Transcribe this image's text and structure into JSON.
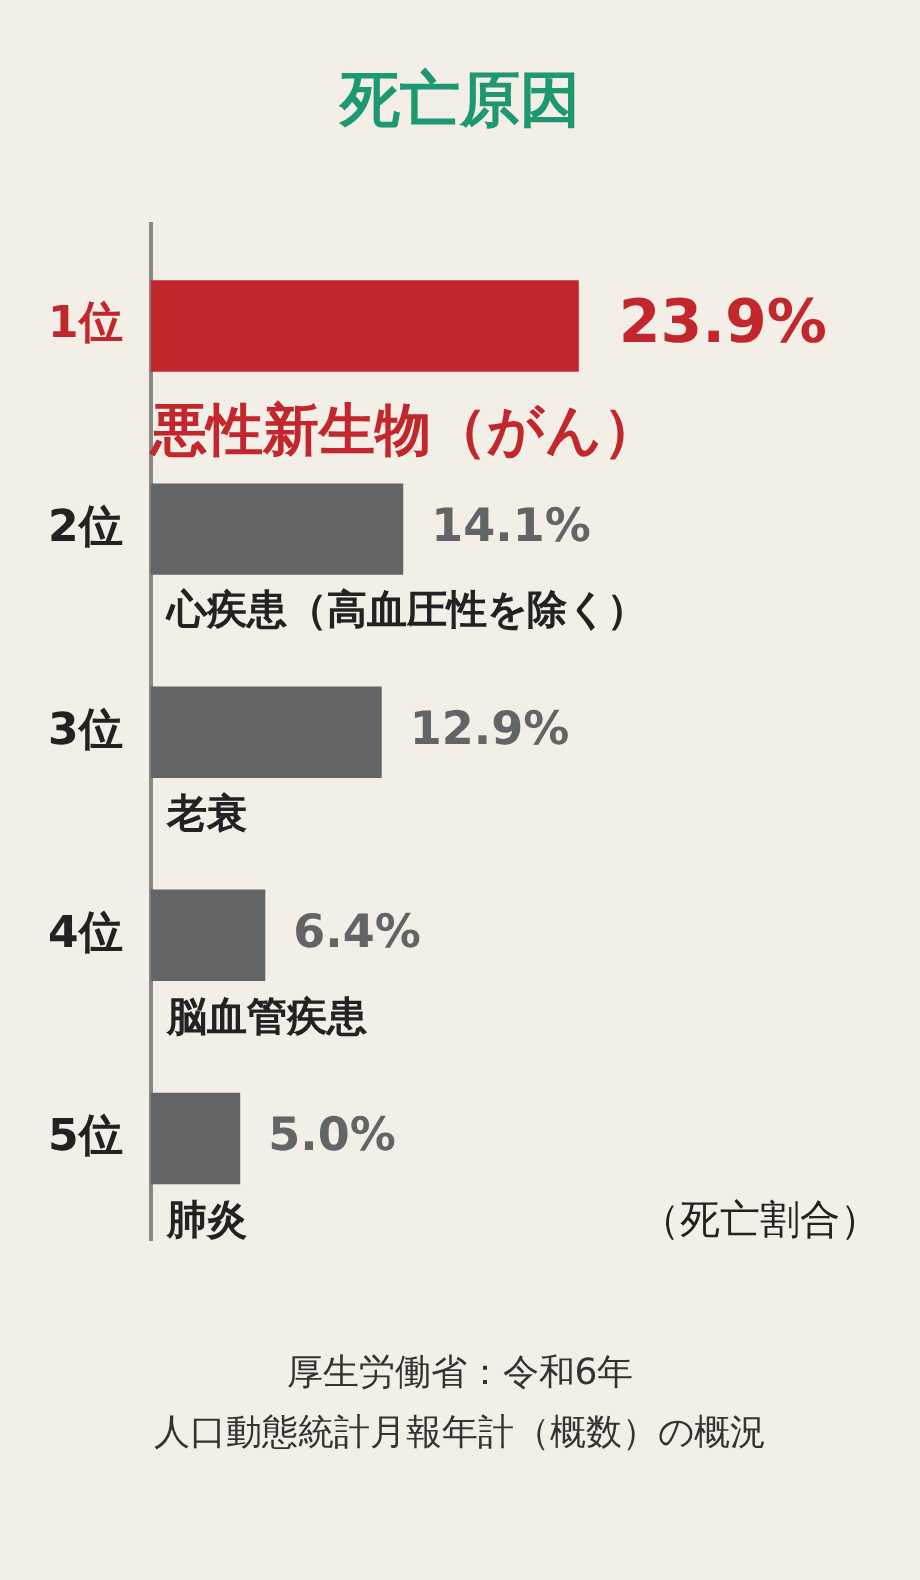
{
  "chart_data": {
    "type": "bar",
    "orientation": "horizontal",
    "title": "死亡原因",
    "categories": [
      "1位",
      "2位",
      "3位",
      "4位",
      "5位"
    ],
    "values": [
      23.9,
      14.1,
      12.9,
      6.4,
      5.0
    ],
    "colors": [
      "#c1272d",
      "#636466",
      "#636466",
      "#636466",
      "#636466"
    ],
    "value_labels": [
      "23.9%",
      "14.1%",
      "12.9%",
      "6.4%",
      "5.0%"
    ],
    "annotations": [
      "悪性新生物（がん）",
      "心疾患（高血圧性を除く）",
      "老衰",
      "脳血管疾患",
      "肺炎",
      "（死亡割合）",
      "厚生労働省：令和6年",
      "人口動態統計月報年計（概数）の概況"
    ],
    "grid": false,
    "legend": false,
    "tick_labels": "y"
  }
}
